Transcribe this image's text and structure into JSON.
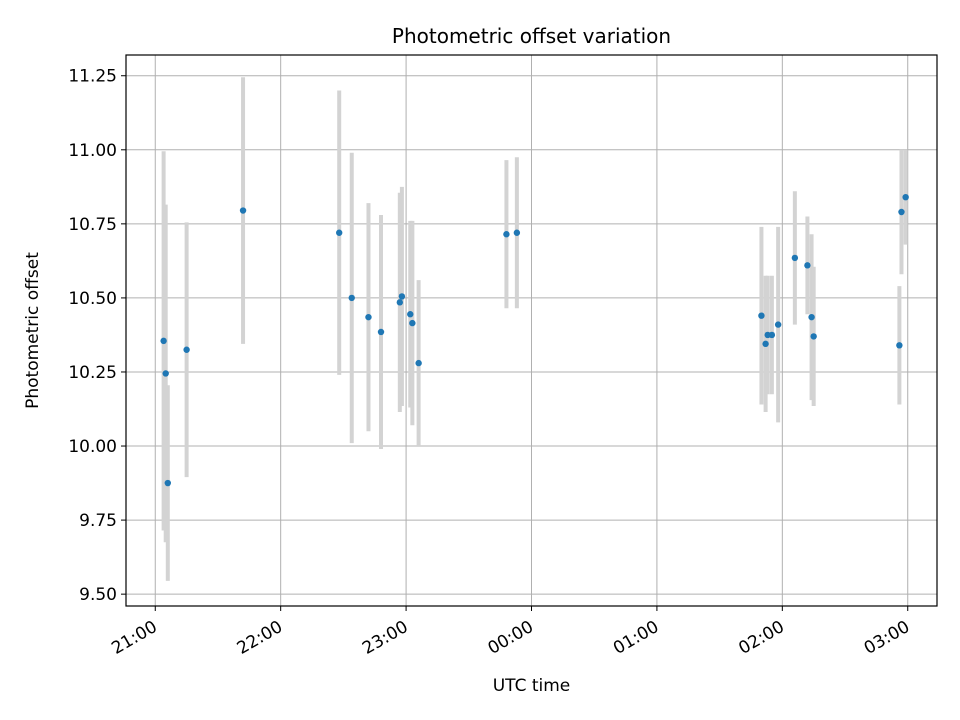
{
  "chart_data": {
    "type": "scatter",
    "title": "Photometric offset variation",
    "xlabel": "UTC time",
    "ylabel": "Photometric offset",
    "x_axis": "time",
    "x_ticks": [
      {
        "time": "21:00",
        "label": "21:00"
      },
      {
        "time": "22:00",
        "label": "22:00"
      },
      {
        "time": "23:00",
        "label": "23:00"
      },
      {
        "time": "24:00",
        "label": "00:00"
      },
      {
        "time": "25:00",
        "label": "01:00"
      },
      {
        "time": "26:00",
        "label": "02:00"
      },
      {
        "time": "27:00",
        "label": "03:00"
      }
    ],
    "xlim": [
      "20:46",
      "27:14"
    ],
    "ylim": [
      9.46,
      11.32
    ],
    "y_ticks": [
      "9.50",
      "9.75",
      "10.00",
      "10.25",
      "10.50",
      "10.75",
      "11.00",
      "11.25"
    ],
    "grid": true,
    "colors": {
      "point": "#1f77b4",
      "errorbar": "#d3d3d3"
    },
    "points": [
      {
        "time": "21:04",
        "y": 10.355,
        "err": 0.64
      },
      {
        "time": "21:05",
        "y": 10.245,
        "err": 0.57
      },
      {
        "time": "21:06",
        "y": 9.875,
        "err": 0.33
      },
      {
        "time": "21:15",
        "y": 10.325,
        "err": 0.43
      },
      {
        "time": "21:42",
        "y": 10.795,
        "err": 0.45
      },
      {
        "time": "22:28",
        "y": 10.72,
        "err": 0.48
      },
      {
        "time": "22:34",
        "y": 10.5,
        "err": 0.49
      },
      {
        "time": "22:42",
        "y": 10.435,
        "err": 0.385
      },
      {
        "time": "22:48",
        "y": 10.385,
        "err": 0.395
      },
      {
        "time": "22:57",
        "y": 10.485,
        "err": 0.37
      },
      {
        "time": "22:58",
        "y": 10.505,
        "err": 0.37
      },
      {
        "time": "23:02",
        "y": 10.445,
        "err": 0.315
      },
      {
        "time": "23:03",
        "y": 10.415,
        "err": 0.345
      },
      {
        "time": "23:06",
        "y": 10.28,
        "err": 0.28
      },
      {
        "time": "23:48",
        "y": 10.715,
        "err": 0.25
      },
      {
        "time": "23:53",
        "y": 10.72,
        "err": 0.255
      },
      {
        "time": "25:50",
        "y": 10.44,
        "err": 0.3
      },
      {
        "time": "25:52",
        "y": 10.345,
        "err": 0.23
      },
      {
        "time": "25:53",
        "y": 10.375,
        "err": 0.2
      },
      {
        "time": "25:55",
        "y": 10.375,
        "err": 0.2
      },
      {
        "time": "25:58",
        "y": 10.41,
        "err": 0.33
      },
      {
        "time": "26:06",
        "y": 10.635,
        "err": 0.225
      },
      {
        "time": "26:12",
        "y": 10.61,
        "err": 0.165
      },
      {
        "time": "26:14",
        "y": 10.435,
        "err": 0.28
      },
      {
        "time": "26:15",
        "y": 10.37,
        "err": 0.235
      },
      {
        "time": "26:56",
        "y": 10.34,
        "err": 0.2
      },
      {
        "time": "26:57",
        "y": 10.79,
        "err": 0.21
      },
      {
        "time": "26:59",
        "y": 10.84,
        "err": 0.16
      }
    ]
  }
}
